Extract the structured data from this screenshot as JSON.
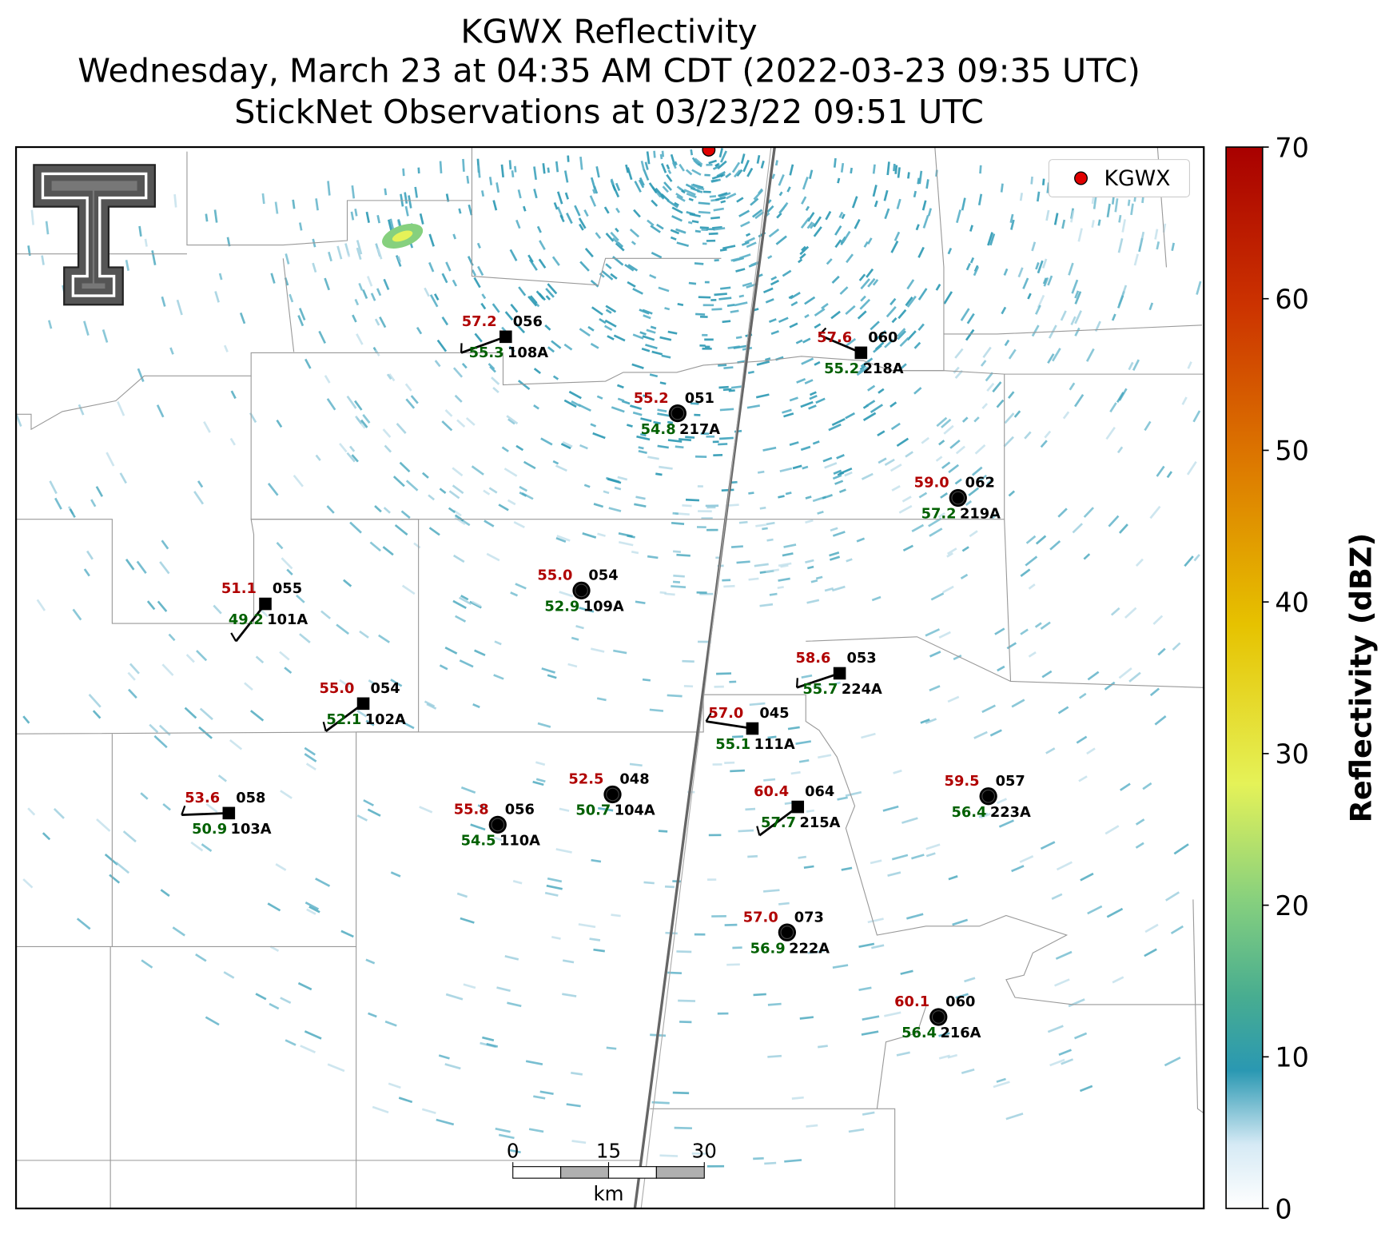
{
  "title": [
    "KGWX Reflectivity",
    "Wednesday, March 23 at 04:35 AM CDT (2022-03-23 09:35 UTC)",
    "StickNet Observations at 03/23/22 09:51 UTC"
  ],
  "legend": {
    "label": "KGWX",
    "color": "#e00000"
  },
  "colorbar": {
    "label": "Reflectivity (dBZ)",
    "lim": [
      0,
      70
    ],
    "ticks": [
      0,
      10,
      20,
      30,
      40,
      50,
      60,
      70
    ]
  },
  "scale_bar": {
    "ticks": [
      0,
      15,
      30
    ],
    "unit": "km"
  },
  "stations": [
    {
      "id": "108A",
      "temp": "57.2",
      "dewpoint": "55.3",
      "pressure": "056"
    },
    {
      "id": "218A",
      "temp": "57.6",
      "dewpoint": "55.2",
      "pressure": "060"
    },
    {
      "id": "217A",
      "temp": "55.2",
      "dewpoint": "54.8",
      "pressure": "051"
    },
    {
      "id": "219A",
      "temp": "59.0",
      "dewpoint": "57.2",
      "pressure": "062"
    },
    {
      "id": "109A",
      "temp": "55.0",
      "dewpoint": "52.9",
      "pressure": "054"
    },
    {
      "id": "101A",
      "temp": "51.1",
      "dewpoint": "49.2",
      "pressure": "055"
    },
    {
      "id": "224A",
      "temp": "58.6",
      "dewpoint": "55.7",
      "pressure": "053"
    },
    {
      "id": "102A",
      "temp": "55.0",
      "dewpoint": "52.1",
      "pressure": "054"
    },
    {
      "id": "111A",
      "temp": "57.0",
      "dewpoint": "55.1",
      "pressure": "045"
    },
    {
      "id": "103A",
      "temp": "53.6",
      "dewpoint": "50.9",
      "pressure": "058"
    },
    {
      "id": "110A",
      "temp": "55.8",
      "dewpoint": "54.5",
      "pressure": "056"
    },
    {
      "id": "104A",
      "temp": "52.5",
      "dewpoint": "50.7",
      "pressure": "048"
    },
    {
      "id": "215A",
      "temp": "60.4",
      "dewpoint": "57.7",
      "pressure": "064"
    },
    {
      "id": "223A",
      "temp": "59.5",
      "dewpoint": "56.4",
      "pressure": "057"
    },
    {
      "id": "222A",
      "temp": "57.0",
      "dewpoint": "56.9",
      "pressure": "073"
    },
    {
      "id": "216A",
      "temp": "60.1",
      "dewpoint": "56.4",
      "pressure": "060"
    }
  ]
}
